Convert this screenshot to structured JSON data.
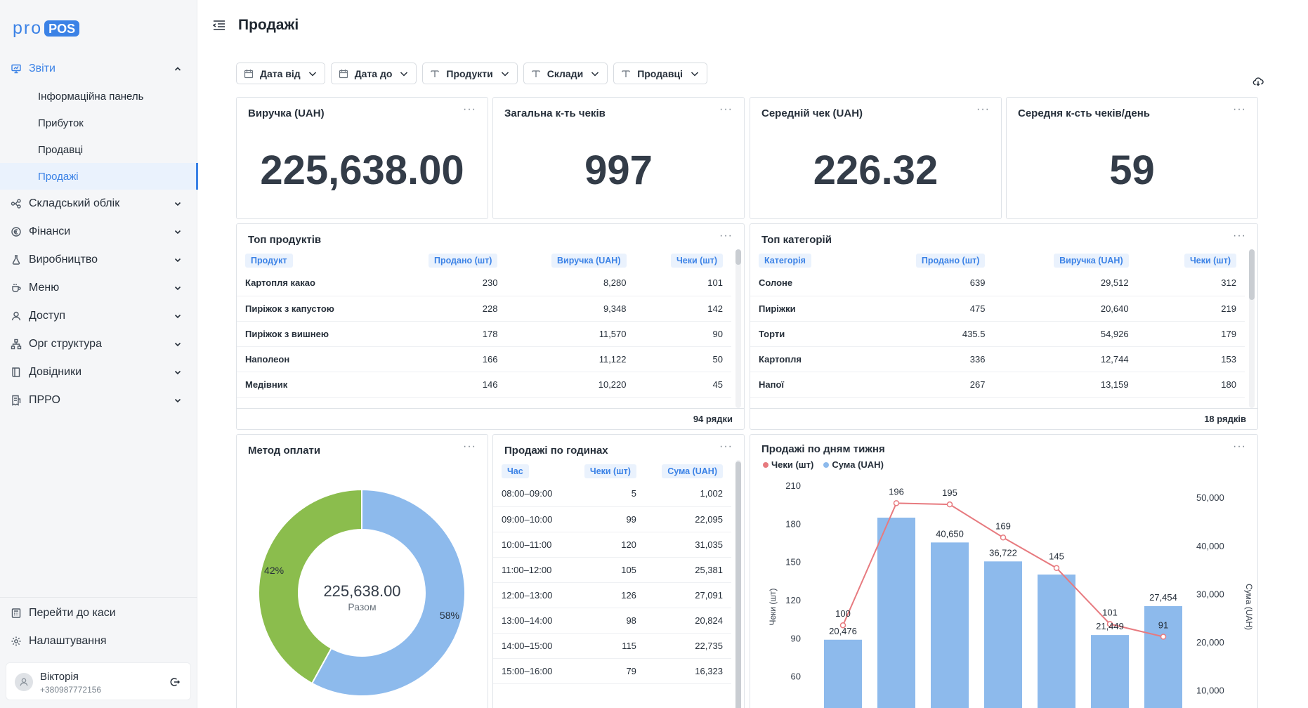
{
  "brand": {
    "pro": "pro",
    "pos": "POS"
  },
  "sidebar": {
    "reports": {
      "label": "Звіти",
      "icon": "presentation-chart-icon"
    },
    "report_items": [
      {
        "label": "Інформаційна панель"
      },
      {
        "label": "Прибуток"
      },
      {
        "label": "Продавці"
      },
      {
        "label": "Продажі"
      }
    ],
    "sections": [
      {
        "label": "Складський облік",
        "icon": "warehouse-nodes-icon"
      },
      {
        "label": "Фінанси",
        "icon": "euro-coin-icon"
      },
      {
        "label": "Виробництво",
        "icon": "flask-icon"
      },
      {
        "label": "Меню",
        "icon": "cup-icon"
      },
      {
        "label": "Доступ",
        "icon": "user-icon"
      },
      {
        "label": "Орг структура",
        "icon": "org-structure-icon"
      },
      {
        "label": "Довідники",
        "icon": "book-icon"
      },
      {
        "label": "ПРРО",
        "icon": "receipt-icon"
      }
    ],
    "bottom": [
      {
        "label": "Перейти до каси",
        "icon": "cash-register-icon"
      },
      {
        "label": "Налаштування",
        "icon": "gear-icon"
      }
    ],
    "user": {
      "name": "Вікторія",
      "phone": "+380987772156"
    }
  },
  "header": {
    "title": "Продажі"
  },
  "filters": [
    {
      "label": "Дата від",
      "icon": "calendar-icon"
    },
    {
      "label": "Дата до",
      "icon": "calendar-icon"
    },
    {
      "label": "Продукти",
      "icon": "text-t-icon"
    },
    {
      "label": "Склади",
      "icon": "text-t-icon"
    },
    {
      "label": "Продавці",
      "icon": "text-t-icon"
    }
  ],
  "kpis": [
    {
      "title": "Виручка (UAH)",
      "value": "225,638.00"
    },
    {
      "title": "Загальна к-ть чеків",
      "value": "997"
    },
    {
      "title": "Середній чек (UAH)",
      "value": "226.32"
    },
    {
      "title": "Середня к-сть чеків/день",
      "value": "59"
    }
  ],
  "top_products": {
    "title": "Топ продуктів",
    "columns": [
      "Продукт",
      "Продано (шт)",
      "Виручка (UAH)",
      "Чеки (шт)"
    ],
    "rows": [
      [
        "Картопля какао",
        "230",
        "8,280",
        "101"
      ],
      [
        "Пиріжок з капустою",
        "228",
        "9,348",
        "142"
      ],
      [
        "Пиріжок з вишнею",
        "178",
        "11,570",
        "90"
      ],
      [
        "Наполеон",
        "166",
        "11,122",
        "50"
      ],
      [
        "Медівник",
        "146",
        "10,220",
        "45"
      ]
    ],
    "footer": "94 рядки"
  },
  "top_categories": {
    "title": "Топ категорій",
    "columns": [
      "Категорія",
      "Продано (шт)",
      "Виручка (UAH)",
      "Чеки (шт)"
    ],
    "rows": [
      [
        "Солоне",
        "639",
        "29,512",
        "312"
      ],
      [
        "Пиріжки",
        "475",
        "20,640",
        "219"
      ],
      [
        "Торти",
        "435.5",
        "54,926",
        "179"
      ],
      [
        "Картопля",
        "336",
        "12,744",
        "153"
      ],
      [
        "Напої",
        "267",
        "13,159",
        "180"
      ]
    ],
    "footer": "18 рядків"
  },
  "payment": {
    "title": "Метод оплати",
    "total": "225,638.00",
    "total_label": "Разом"
  },
  "hourly": {
    "title": "Продажі по годинах",
    "columns": [
      "Час",
      "Чеки (шт)",
      "Сума (UAH)"
    ],
    "rows": [
      [
        "08:00–09:00",
        "5",
        "1,002"
      ],
      [
        "09:00–10:00",
        "99",
        "22,095"
      ],
      [
        "10:00–11:00",
        "120",
        "31,035"
      ],
      [
        "11:00–12:00",
        "105",
        "25,381"
      ],
      [
        "12:00–13:00",
        "126",
        "27,091"
      ],
      [
        "13:00–14:00",
        "98",
        "20,824"
      ],
      [
        "14:00–15:00",
        "115",
        "22,735"
      ],
      [
        "15:00–16:00",
        "79",
        "16,323"
      ]
    ]
  },
  "weekday": {
    "title": "Продажі по дням тижня"
  },
  "colors": {
    "accent": "#3b82e6",
    "bar": "#8dbaec",
    "line": "#e77a7f",
    "donut_green": "#8bbd4d",
    "donut_blue": "#8dbaec"
  },
  "chart_data": [
    {
      "type": "pie",
      "slices": [
        {
          "label": "58%",
          "value": 58
        },
        {
          "label": "42%",
          "value": 42
        }
      ]
    },
    {
      "type": "bar",
      "legend": [
        "Чеки (шт)",
        "Сума (UAH)"
      ],
      "legend_position": "top-left",
      "ylabel_left": "Чеки (шт)",
      "ylabel_right": "Сума (UAH)",
      "left_ticks": [
        "210",
        "180",
        "150",
        "120",
        "90",
        "60"
      ],
      "right_ticks": [
        "50,000",
        "40,000",
        "30,000",
        "20,000",
        "10,000"
      ],
      "ylim_left": [
        30,
        210
      ],
      "ylim_right": [
        5000,
        52500
      ],
      "series": [
        {
          "name": "Сума (UAH)",
          "kind": "bar",
          "values": [
            20476,
            45800,
            40650,
            36722,
            34000,
            21449,
            27454
          ],
          "labels": [
            "20,476",
            "",
            "40,650",
            "36,722",
            "",
            "21,449",
            "27,454"
          ]
        },
        {
          "name": "Чеки (шт)",
          "kind": "line",
          "values": [
            100,
            196,
            195,
            169,
            145,
            101,
            91
          ],
          "labels": [
            "100",
            "196",
            "195",
            "169",
            "145",
            "101",
            "91"
          ]
        }
      ],
      "grid": false
    }
  ]
}
